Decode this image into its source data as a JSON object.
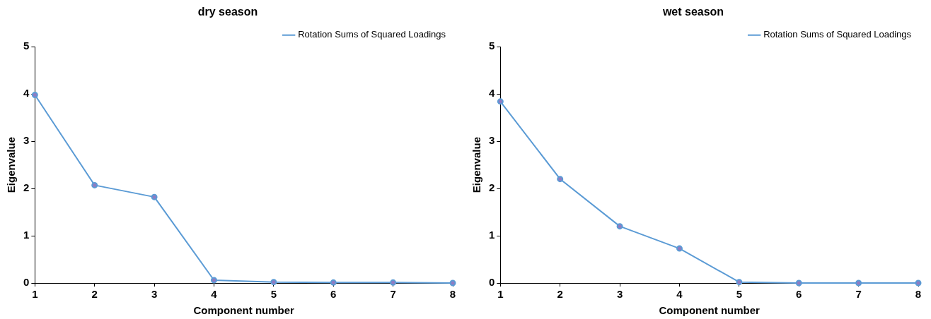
{
  "chart_data": [
    {
      "type": "line",
      "title": "dry season",
      "xlabel": "Component number",
      "ylabel": "Eigenvalue",
      "x": [
        1,
        2,
        3,
        4,
        5,
        6,
        7,
        8
      ],
      "xlim": [
        1,
        8
      ],
      "xticks": [
        1,
        2,
        3,
        4,
        5,
        6,
        7,
        8
      ],
      "ylim": [
        0,
        5
      ],
      "yticks": [
        0,
        1,
        2,
        3,
        4,
        5
      ],
      "grid": false,
      "legend": "top right",
      "marker": "circle",
      "line_style": "solid",
      "series": [
        {
          "name": "Rotation Sums of Squared Loadings",
          "color": "#5b9bd5",
          "values": [
            3.98,
            2.07,
            1.82,
            0.06,
            0.02,
            0.01,
            0.01,
            0
          ]
        }
      ]
    },
    {
      "type": "line",
      "title": "wet season",
      "xlabel": "Component number",
      "ylabel": "Eigenvalue",
      "x": [
        1,
        2,
        3,
        4,
        5,
        6,
        7,
        8
      ],
      "xlim": [
        1,
        8
      ],
      "xticks": [
        1,
        2,
        3,
        4,
        5,
        6,
        7,
        8
      ],
      "ylim": [
        0,
        5
      ],
      "yticks": [
        0,
        1,
        2,
        3,
        4,
        5
      ],
      "grid": false,
      "legend": "top right",
      "marker": "circle",
      "line_style": "solid",
      "series": [
        {
          "name": "Rotation Sums of Squared Loadings",
          "color": "#5b9bd5",
          "values": [
            3.84,
            2.2,
            1.2,
            0.73,
            0.02,
            0,
            0,
            0
          ]
        }
      ]
    }
  ]
}
